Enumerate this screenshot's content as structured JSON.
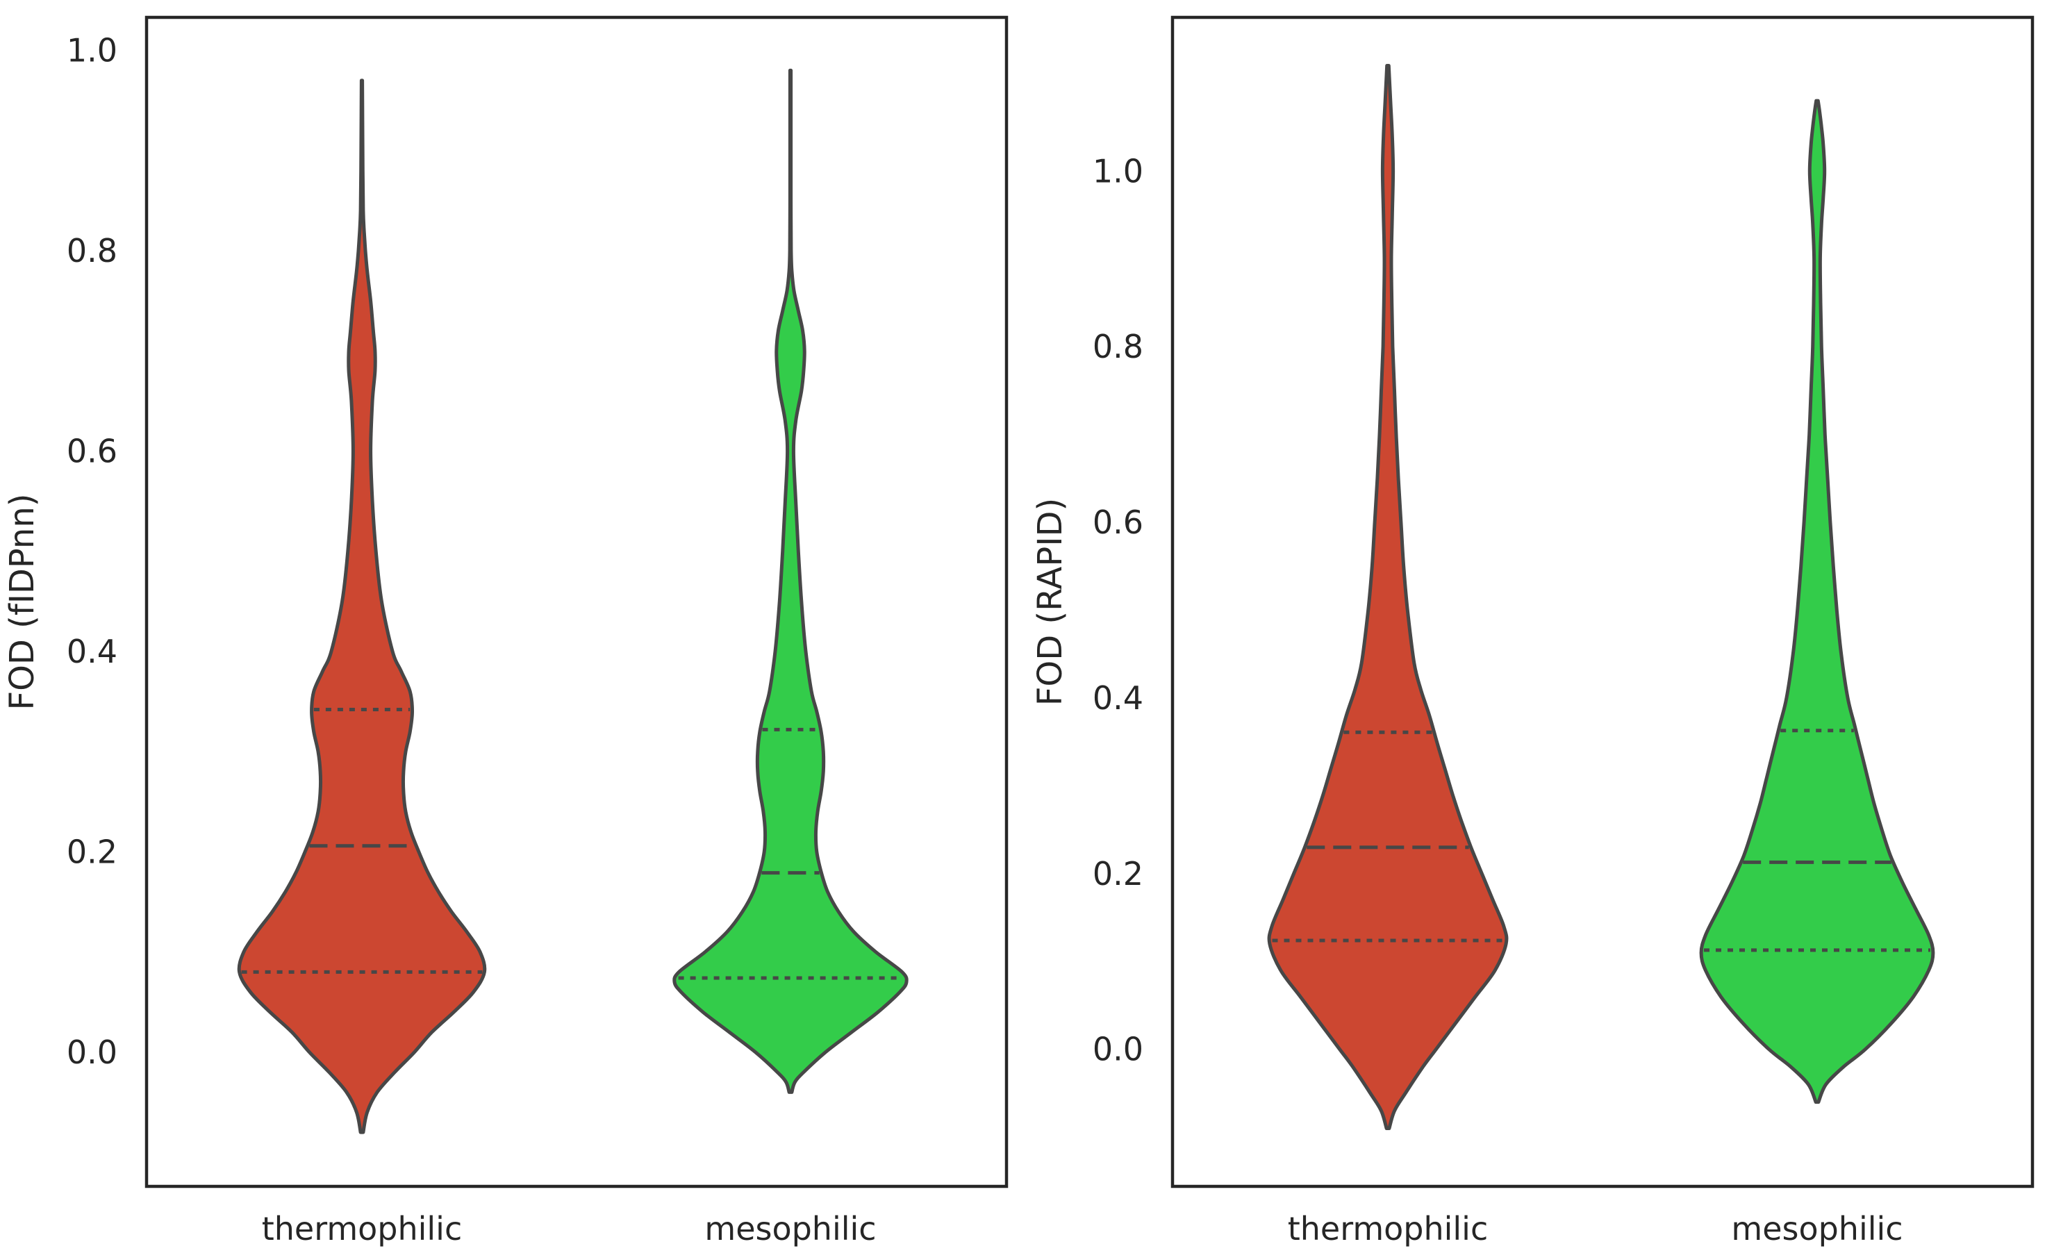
{
  "chart_data": [
    {
      "type": "violin",
      "ylabel": "FOD (fIDPnn)",
      "xlabel": "",
      "ylim": [
        -0.134,
        1.033
      ],
      "yticks": [
        0.0,
        0.2,
        0.4,
        0.6,
        0.8,
        1.0
      ],
      "ytick_labels": [
        "0.0",
        "0.2",
        "0.4",
        "0.6",
        "0.8",
        "1.0"
      ],
      "categories": [
        "thermophilic",
        "mesophilic"
      ],
      "series": [
        {
          "name": "thermophilic",
          "color": "#cc4731",
          "quartiles": [
            0.08,
            0.206,
            0.342
          ],
          "profile": [
            [
              -0.08,
              0.003
            ],
            [
              -0.06,
              0.012
            ],
            [
              -0.04,
              0.035
            ],
            [
              -0.02,
              0.075
            ],
            [
              0.0,
              0.12
            ],
            [
              0.02,
              0.16
            ],
            [
              0.04,
              0.21
            ],
            [
              0.06,
              0.255
            ],
            [
              0.08,
              0.28
            ],
            [
              0.1,
              0.27
            ],
            [
              0.12,
              0.24
            ],
            [
              0.14,
              0.205
            ],
            [
              0.16,
              0.175
            ],
            [
              0.18,
              0.15
            ],
            [
              0.2,
              0.13
            ],
            [
              0.22,
              0.112
            ],
            [
              0.24,
              0.1
            ],
            [
              0.26,
              0.095
            ],
            [
              0.28,
              0.095
            ],
            [
              0.3,
              0.1
            ],
            [
              0.32,
              0.11
            ],
            [
              0.34,
              0.115
            ],
            [
              0.36,
              0.11
            ],
            [
              0.38,
              0.09
            ],
            [
              0.4,
              0.07
            ],
            [
              0.45,
              0.045
            ],
            [
              0.5,
              0.032
            ],
            [
              0.55,
              0.024
            ],
            [
              0.6,
              0.02
            ],
            [
              0.65,
              0.024
            ],
            [
              0.68,
              0.03
            ],
            [
              0.7,
              0.03
            ],
            [
              0.72,
              0.026
            ],
            [
              0.75,
              0.02
            ],
            [
              0.78,
              0.012
            ],
            [
              0.8,
              0.008
            ],
            [
              0.82,
              0.005
            ],
            [
              0.84,
              0.003
            ],
            [
              0.88,
              0.002
            ],
            [
              0.93,
              0.0015
            ],
            [
              0.97,
              0.001
            ]
          ]
        },
        {
          "name": "mesophilic",
          "color": "#33cc4a",
          "quartiles": [
            0.074,
            0.179,
            0.322
          ],
          "profile": [
            [
              -0.04,
              0.003
            ],
            [
              -0.03,
              0.01
            ],
            [
              -0.02,
              0.03
            ],
            [
              0.0,
              0.08
            ],
            [
              0.02,
              0.14
            ],
            [
              0.04,
              0.2
            ],
            [
              0.06,
              0.25
            ],
            [
              0.07,
              0.265
            ],
            [
              0.08,
              0.255
            ],
            [
              0.1,
              0.195
            ],
            [
              0.12,
              0.145
            ],
            [
              0.14,
              0.11
            ],
            [
              0.16,
              0.085
            ],
            [
              0.18,
              0.07
            ],
            [
              0.2,
              0.06
            ],
            [
              0.22,
              0.058
            ],
            [
              0.24,
              0.062
            ],
            [
              0.26,
              0.07
            ],
            [
              0.28,
              0.075
            ],
            [
              0.3,
              0.075
            ],
            [
              0.32,
              0.07
            ],
            [
              0.34,
              0.06
            ],
            [
              0.36,
              0.048
            ],
            [
              0.4,
              0.035
            ],
            [
              0.45,
              0.025
            ],
            [
              0.5,
              0.018
            ],
            [
              0.55,
              0.012
            ],
            [
              0.6,
              0.007
            ],
            [
              0.63,
              0.012
            ],
            [
              0.66,
              0.025
            ],
            [
              0.68,
              0.03
            ],
            [
              0.7,
              0.032
            ],
            [
              0.72,
              0.028
            ],
            [
              0.74,
              0.018
            ],
            [
              0.76,
              0.008
            ],
            [
              0.78,
              0.003
            ],
            [
              0.8,
              0.0015
            ],
            [
              0.85,
              0.001
            ],
            [
              0.9,
              0.001
            ],
            [
              0.98,
              0.001
            ]
          ]
        }
      ]
    },
    {
      "type": "violin",
      "ylabel": "FOD (RAPID)",
      "xlabel": "",
      "ylim": [
        -0.156,
        1.175
      ],
      "yticks": [
        0.0,
        0.2,
        0.4,
        0.6,
        0.8,
        1.0
      ],
      "ytick_labels": [
        "0.0",
        "0.2",
        "0.4",
        "0.6",
        "0.8",
        "1.0"
      ],
      "categories": [
        "thermophilic",
        "mesophilic"
      ],
      "series": [
        {
          "name": "thermophilic",
          "color": "#cc4731",
          "quartiles": [
            0.124,
            0.23,
            0.361
          ],
          "profile": [
            [
              -0.09,
              0.003
            ],
            [
              -0.07,
              0.015
            ],
            [
              -0.05,
              0.04
            ],
            [
              -0.02,
              0.08
            ],
            [
              0.0,
              0.11
            ],
            [
              0.03,
              0.155
            ],
            [
              0.06,
              0.2
            ],
            [
              0.09,
              0.245
            ],
            [
              0.12,
              0.27
            ],
            [
              0.14,
              0.265
            ],
            [
              0.17,
              0.24
            ],
            [
              0.2,
              0.215
            ],
            [
              0.23,
              0.19
            ],
            [
              0.26,
              0.168
            ],
            [
              0.29,
              0.148
            ],
            [
              0.32,
              0.13
            ],
            [
              0.35,
              0.112
            ],
            [
              0.38,
              0.095
            ],
            [
              0.41,
              0.075
            ],
            [
              0.44,
              0.06
            ],
            [
              0.5,
              0.045
            ],
            [
              0.55,
              0.036
            ],
            [
              0.6,
              0.03
            ],
            [
              0.65,
              0.024
            ],
            [
              0.7,
              0.019
            ],
            [
              0.75,
              0.015
            ],
            [
              0.8,
              0.011
            ],
            [
              0.85,
              0.009
            ],
            [
              0.9,
              0.008
            ],
            [
              0.95,
              0.01
            ],
            [
              1.0,
              0.012
            ],
            [
              1.04,
              0.01
            ],
            [
              1.08,
              0.006
            ],
            [
              1.11,
              0.003
            ],
            [
              1.12,
              0.002
            ]
          ]
        },
        {
          "name": "mesophilic",
          "color": "#33cc4a",
          "quartiles": [
            0.113,
            0.213,
            0.363
          ],
          "profile": [
            [
              -0.06,
              0.003
            ],
            [
              -0.04,
              0.02
            ],
            [
              -0.02,
              0.06
            ],
            [
              0.0,
              0.11
            ],
            [
              0.03,
              0.17
            ],
            [
              0.06,
              0.22
            ],
            [
              0.09,
              0.255
            ],
            [
              0.11,
              0.265
            ],
            [
              0.13,
              0.255
            ],
            [
              0.16,
              0.225
            ],
            [
              0.19,
              0.195
            ],
            [
              0.22,
              0.168
            ],
            [
              0.25,
              0.148
            ],
            [
              0.28,
              0.13
            ],
            [
              0.31,
              0.115
            ],
            [
              0.34,
              0.1
            ],
            [
              0.37,
              0.085
            ],
            [
              0.4,
              0.07
            ],
            [
              0.45,
              0.055
            ],
            [
              0.5,
              0.045
            ],
            [
              0.55,
              0.037
            ],
            [
              0.6,
              0.03
            ],
            [
              0.65,
              0.024
            ],
            [
              0.7,
              0.018
            ],
            [
              0.75,
              0.014
            ],
            [
              0.8,
              0.01
            ],
            [
              0.85,
              0.008
            ],
            [
              0.9,
              0.007
            ],
            [
              0.94,
              0.01
            ],
            [
              0.97,
              0.014
            ],
            [
              1.0,
              0.017
            ],
            [
              1.03,
              0.014
            ],
            [
              1.05,
              0.01
            ],
            [
              1.07,
              0.005
            ],
            [
              1.08,
              0.002
            ]
          ]
        }
      ]
    }
  ]
}
